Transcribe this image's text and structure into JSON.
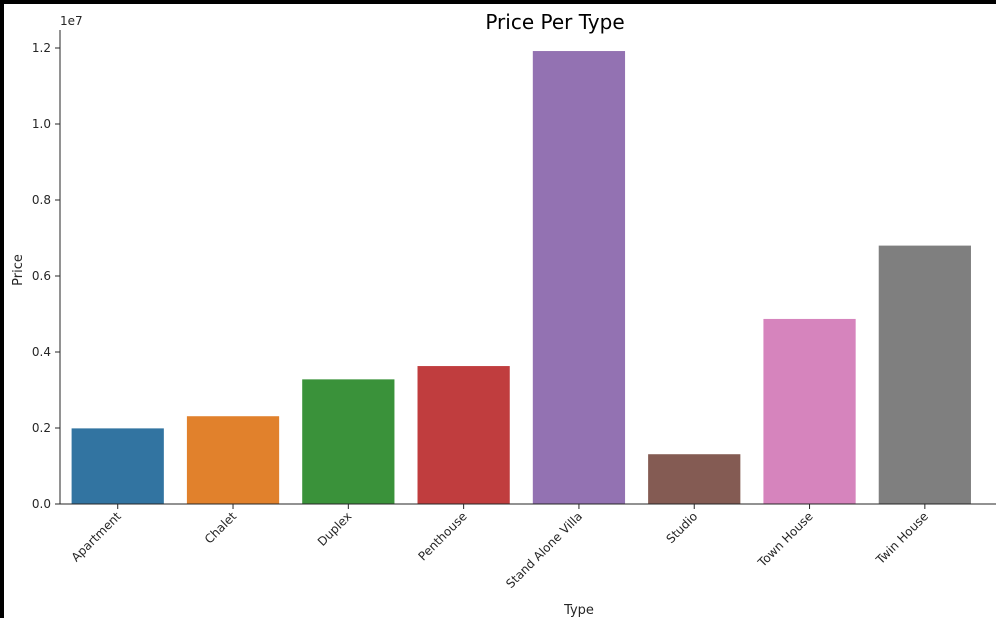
{
  "chart_data": {
    "type": "bar",
    "title": "Price Per Type",
    "xlabel": "Type",
    "ylabel": "Price",
    "y_offset_label": "1e7",
    "categories": [
      "Apartment",
      "Chalet",
      "Duplex",
      "Penthouse",
      "Stand Alone Villa",
      "Studio",
      "Town House",
      "Twin House"
    ],
    "values": [
      1.99,
      2.31,
      3.28,
      3.63,
      11.92,
      1.31,
      4.87,
      6.8
    ],
    "value_scale": 10000000,
    "ylim": [
      0,
      12.5
    ],
    "yticks": [
      0.0,
      0.2,
      0.4,
      0.6,
      0.8,
      1.0,
      1.2
    ],
    "ytick_labels": [
      "0.0",
      "0.2",
      "0.4",
      "0.6",
      "0.8",
      "1.0",
      "1.2"
    ],
    "colors": [
      "#3274a1",
      "#e1812c",
      "#3a923a",
      "#c03d3e",
      "#9372b2",
      "#845b53",
      "#d684bd",
      "#7f7f7f"
    ],
    "grid": false,
    "legend": "none"
  }
}
